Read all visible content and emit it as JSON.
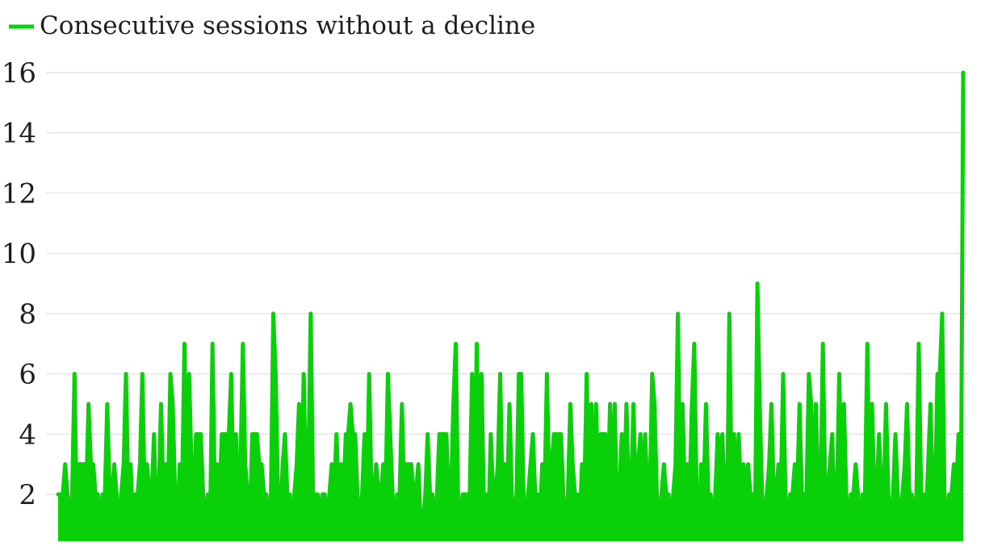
{
  "legend": {
    "label": "Consecutive sessions without a decline"
  },
  "chart_data": {
    "type": "line",
    "title": "Consecutive sessions without a decline",
    "xlabel": "",
    "ylabel": "",
    "yticks": [
      2,
      4,
      6,
      8,
      10,
      12,
      14,
      16
    ],
    "ylim": [
      0.45,
      16.4
    ],
    "grid": "horizontal",
    "legend_position": "top-left",
    "fill_under_line": true,
    "colors": {
      "series": "#09d009",
      "grid": "#e4e4e4",
      "text": "#1f1f1f",
      "background": "#ffffff"
    },
    "series": [
      {
        "name": "Consecutive sessions without a decline",
        "values": [
          2,
          2,
          2,
          3,
          2,
          1,
          2,
          6,
          1,
          3,
          3,
          3,
          2,
          5,
          3,
          3,
          2,
          2,
          1,
          2,
          2,
          5,
          2,
          2,
          3,
          2,
          1,
          2,
          3,
          6,
          2,
          3,
          1,
          2,
          2,
          3,
          6,
          2,
          3,
          2,
          2,
          4,
          1,
          2,
          5,
          2,
          3,
          2,
          6,
          5,
          2,
          1,
          3,
          2,
          7,
          2,
          6,
          3,
          2,
          4,
          4,
          4,
          2,
          1,
          2,
          1,
          7,
          2,
          3,
          2,
          4,
          4,
          4,
          4,
          6,
          2,
          4,
          2,
          3,
          7,
          3,
          2,
          1,
          4,
          4,
          4,
          3,
          3,
          2,
          2,
          1,
          2,
          8,
          6,
          2,
          1,
          3,
          4,
          2,
          2,
          1,
          2,
          3,
          5,
          2,
          6,
          2,
          3,
          8,
          2,
          2,
          2,
          1,
          2,
          2,
          1,
          2,
          3,
          2,
          4,
          2,
          3,
          2,
          4,
          4,
          5,
          4,
          4,
          2,
          1,
          2,
          4,
          2,
          6,
          2,
          2,
          3,
          2,
          2,
          3,
          2,
          6,
          4,
          2,
          1,
          2,
          2,
          5,
          2,
          3,
          3,
          3,
          2,
          2,
          3,
          1,
          1,
          2,
          4,
          2,
          2,
          1,
          2,
          4,
          4,
          4,
          4,
          2,
          2,
          5,
          7,
          2,
          1,
          2,
          2,
          2,
          2,
          6,
          2,
          7,
          2,
          6,
          2,
          2,
          1,
          4,
          2,
          2,
          3,
          6,
          2,
          3,
          2,
          5,
          2,
          1,
          2,
          6,
          6,
          2,
          1,
          2,
          3,
          4,
          2,
          2,
          1,
          3,
          2,
          6,
          2,
          3,
          4,
          4,
          4,
          4,
          2,
          1,
          2,
          5,
          3,
          2,
          2,
          1,
          3,
          2,
          6,
          2,
          5,
          2,
          5,
          2,
          4,
          4,
          4,
          2,
          5,
          2,
          5,
          1,
          2,
          4,
          2,
          5,
          2,
          2,
          5,
          2,
          3,
          4,
          2,
          4,
          2,
          2,
          6,
          5,
          2,
          1,
          2,
          3,
          2,
          2,
          1,
          2,
          3,
          8,
          2,
          5,
          2,
          3,
          2,
          5,
          7,
          2,
          1,
          3,
          2,
          5,
          2,
          2,
          1,
          2,
          4,
          3,
          4,
          2,
          1,
          8,
          2,
          4,
          2,
          4,
          2,
          3,
          2,
          3,
          2,
          2,
          1,
          9,
          5,
          2,
          1,
          2,
          3,
          5,
          2,
          2,
          3,
          2,
          6,
          2,
          1,
          2,
          2,
          3,
          2,
          5,
          2,
          2,
          2,
          6,
          5,
          2,
          5,
          2,
          2,
          7,
          2,
          2,
          3,
          4,
          1,
          2,
          6,
          2,
          5,
          2,
          1,
          2,
          2,
          3,
          2,
          1,
          2,
          2,
          7,
          2,
          5,
          2,
          2,
          4,
          2,
          2,
          5,
          2,
          1,
          2,
          4,
          2,
          1,
          2,
          3,
          5,
          2,
          2,
          1,
          2,
          7,
          2,
          2,
          1,
          3,
          5,
          2,
          2,
          6,
          6,
          8,
          2,
          1,
          2,
          2,
          3,
          2,
          4,
          1,
          16
        ]
      }
    ]
  }
}
